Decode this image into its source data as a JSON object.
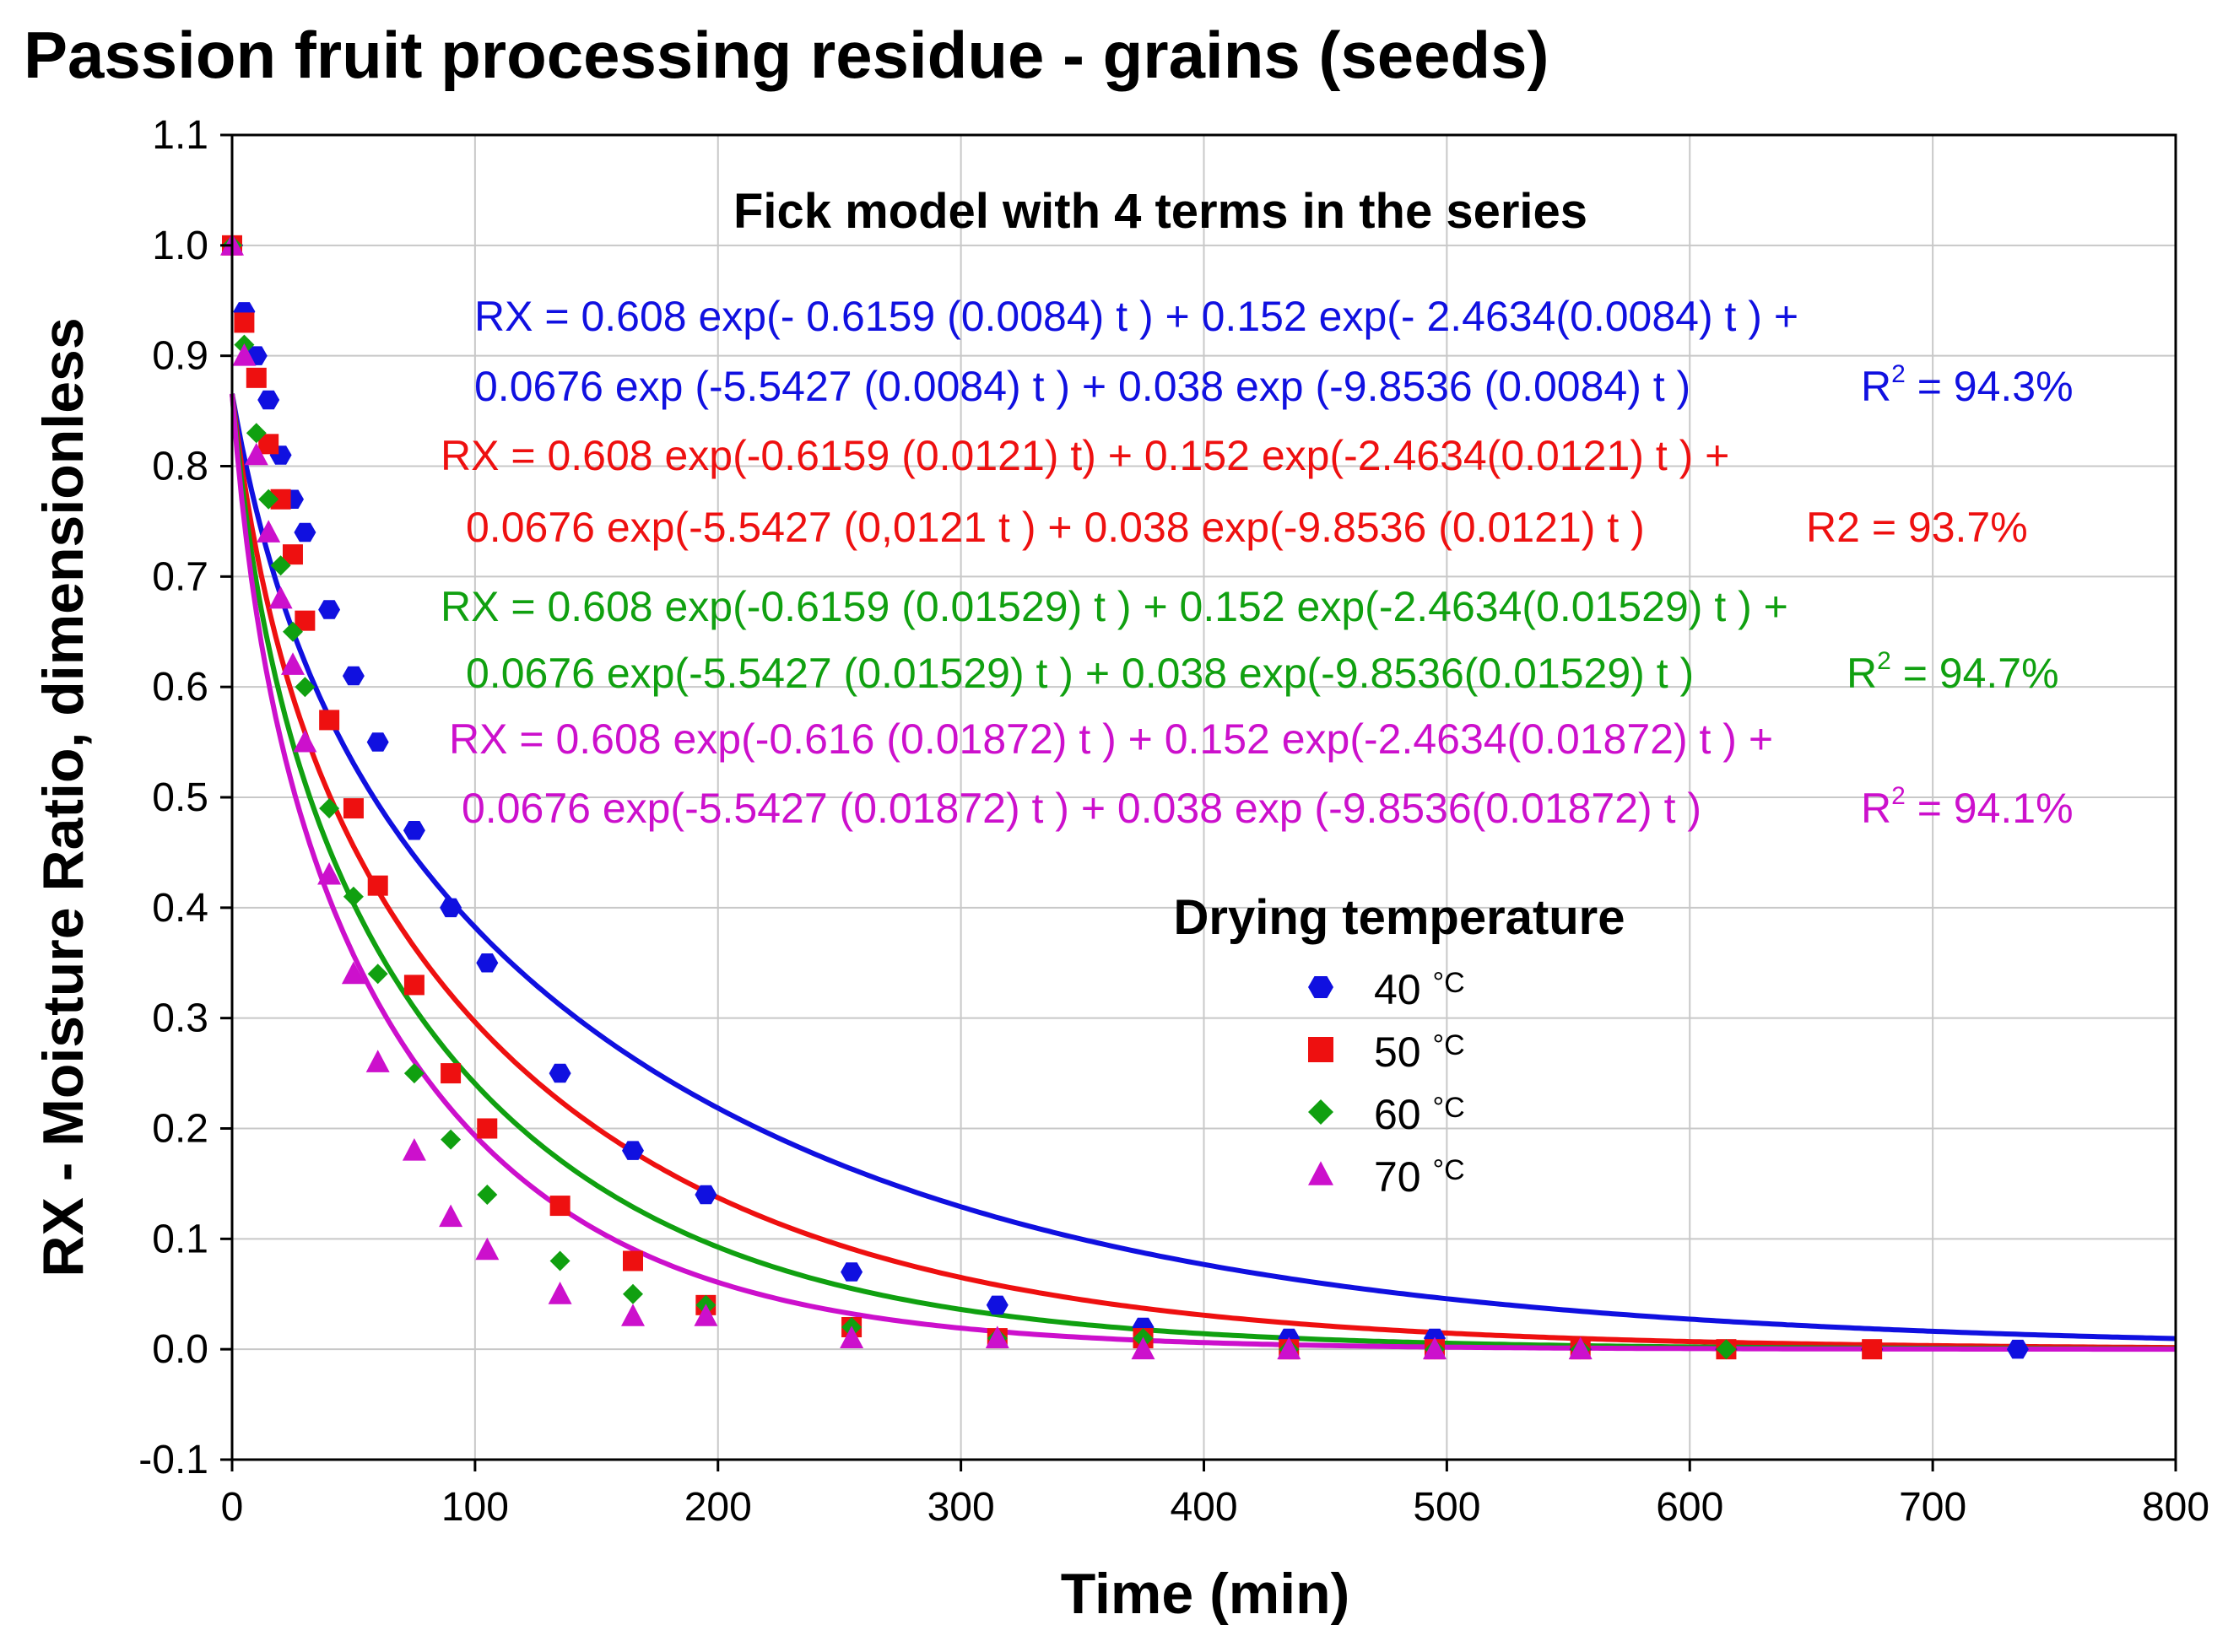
{
  "chart_data": {
    "type": "scatter",
    "title": "Passion fruit processing residue - grains (seeds)",
    "subtitle": "Fick model with 4 terms in the series",
    "xlabel": "Time (min)",
    "ylabel": "RX - Moisture Ratio, dimensionless",
    "xlim": [
      0,
      800
    ],
    "ylim": [
      -0.1,
      1.1
    ],
    "xticks": [
      0,
      100,
      200,
      300,
      400,
      500,
      600,
      700,
      800
    ],
    "yticks": [
      -0.1,
      0.0,
      0.1,
      0.2,
      0.3,
      0.4,
      0.5,
      0.6,
      0.7,
      0.8,
      0.9,
      1.0,
      1.1
    ],
    "ytick_labels": [
      "-0.1",
      "0.0",
      "0.1",
      "0.2",
      "0.3",
      "0.4",
      "0.5",
      "0.6",
      "0.7",
      "0.8",
      "0.9",
      "1.0",
      "1.1"
    ],
    "grid": true,
    "legend_title": "Drying temperature",
    "legend_position": "center-right",
    "model": {
      "coefficients": [
        0.608,
        0.152,
        0.0676,
        0.038
      ],
      "exponents": [
        0.6159,
        2.4634,
        5.5427,
        9.8536
      ]
    },
    "series": [
      {
        "name": "40 °C",
        "label_num": "40",
        "label_unit": "°C",
        "color": "#1010e0",
        "marker": "hexagon",
        "k": 0.0084,
        "x": [
          0,
          5,
          10,
          15,
          20,
          25,
          30,
          40,
          50,
          60,
          75,
          90,
          105,
          135,
          165,
          195,
          255,
          315,
          375,
          435,
          495,
          555,
          615,
          675,
          735
        ],
        "y": [
          1.0,
          0.94,
          0.9,
          0.86,
          0.81,
          0.77,
          0.74,
          0.67,
          0.61,
          0.55,
          0.47,
          0.4,
          0.35,
          0.25,
          0.18,
          0.14,
          0.07,
          0.04,
          0.02,
          0.01,
          0.01,
          0.0,
          0.0,
          0.0,
          0.0
        ],
        "equation_line1": "RX = 0.608 exp(- 0.6159 (0.0084) t ) + 0.152 exp(- 2.4634(0.0084) t ) +",
        "equation_line2": "0.0676 exp (-5.5427 (0.0084) t ) + 0.038 exp (-9.8536 (0.0084) t )",
        "r2_base": "R",
        "r2_sup": "2",
        "r2_value": " = 94.3%"
      },
      {
        "name": "50 °C",
        "label_num": "50",
        "label_unit": "°C",
        "color": "#ee1010",
        "marker": "square",
        "k": 0.0121,
        "x": [
          0,
          5,
          10,
          15,
          20,
          25,
          30,
          40,
          50,
          60,
          75,
          90,
          105,
          135,
          165,
          195,
          255,
          315,
          375,
          435,
          495,
          555,
          615,
          675
        ],
        "y": [
          1.0,
          0.93,
          0.88,
          0.82,
          0.77,
          0.72,
          0.66,
          0.57,
          0.49,
          0.42,
          0.33,
          0.25,
          0.2,
          0.13,
          0.08,
          0.04,
          0.02,
          0.01,
          0.01,
          0.0,
          0.0,
          0.0,
          0.0,
          0.0
        ],
        "equation_line1": "RX = 0.608 exp(-0.6159 (0.0121) t) + 0.152 exp(-2.4634(0.0121) t ) +",
        "equation_line2": "0.0676 exp(-5.5427 (0,0121 t ) + 0.038 exp(-9.8536 (0.0121) t )",
        "r2_base": "R2",
        "r2_sup": "",
        "r2_value": " = 93.7%"
      },
      {
        "name": "60 °C",
        "label_num": "60",
        "label_unit": "°C",
        "color": "#10a010",
        "marker": "diamond",
        "k": 0.01529,
        "x": [
          0,
          5,
          10,
          15,
          20,
          25,
          30,
          40,
          50,
          60,
          75,
          90,
          105,
          135,
          165,
          195,
          255,
          315,
          375,
          435,
          495,
          555,
          615
        ],
        "y": [
          1.0,
          0.91,
          0.83,
          0.77,
          0.71,
          0.65,
          0.6,
          0.49,
          0.41,
          0.34,
          0.25,
          0.19,
          0.14,
          0.08,
          0.05,
          0.04,
          0.02,
          0.01,
          0.01,
          0.0,
          0.0,
          0.0,
          0.0
        ],
        "equation_line1": "RX = 0.608 exp(-0.6159 (0.01529) t ) + 0.152 exp(-2.4634(0.01529) t ) +",
        "equation_line2": "0.0676 exp(-5.5427 (0.01529) t ) + 0.038 exp(-9.8536(0.01529) t )",
        "r2_base": "R",
        "r2_sup": "2",
        "r2_value": " = 94.7%"
      },
      {
        "name": "70 °C",
        "label_num": "70",
        "label_unit": "°C",
        "color": "#cc10cc",
        "marker": "triangle",
        "k": 0.01872,
        "x": [
          0,
          5,
          10,
          15,
          20,
          25,
          30,
          40,
          50,
          60,
          75,
          90,
          105,
          135,
          165,
          195,
          255,
          315,
          375,
          435,
          495,
          555
        ],
        "y": [
          1.0,
          0.9,
          0.81,
          0.74,
          0.68,
          0.62,
          0.55,
          0.43,
          0.34,
          0.26,
          0.18,
          0.12,
          0.09,
          0.05,
          0.03,
          0.03,
          0.01,
          0.01,
          0.0,
          0.0,
          0.0,
          0.0
        ],
        "equation_line1": "RX = 0.608 exp(-0.616 (0.01872) t ) + 0.152 exp(-2.4634(0.01872) t ) +",
        "equation_line2": "0.0676 exp(-5.5427 (0.01872) t ) + 0.038 exp (-9.8536(0.01872) t )",
        "r2_base": "R",
        "r2_sup": "2",
        "r2_value": " = 94.1%"
      }
    ]
  }
}
